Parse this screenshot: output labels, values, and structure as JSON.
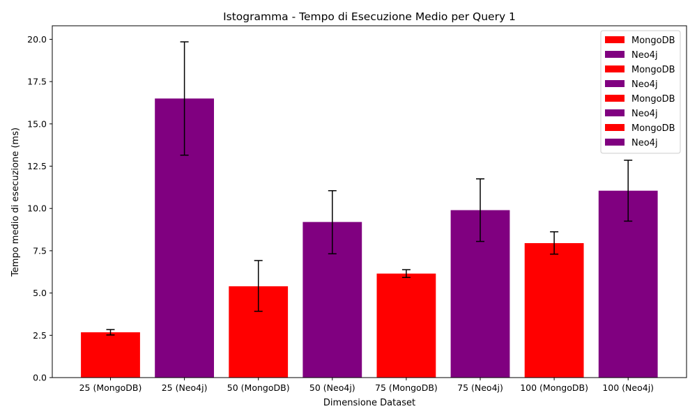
{
  "chart_data": {
    "type": "bar",
    "title": "Istogramma - Tempo di Esecuzione Medio per Query 1",
    "xlabel": "Dimensione Dataset",
    "ylabel": "Tempo medio di esecuzione (ms)",
    "ylim": [
      0,
      20.8
    ],
    "yticks": [
      "0.0",
      "2.5",
      "5.0",
      "7.5",
      "10.0",
      "12.5",
      "15.0",
      "17.5",
      "20.0"
    ],
    "ytick_values": [
      0,
      2.5,
      5,
      7.5,
      10,
      12.5,
      15,
      17.5,
      20
    ],
    "grid": false,
    "legend_placement": "top-right",
    "colors": {
      "MongoDB": "#ff0000",
      "Neo4j": "#800080"
    },
    "bars": [
      {
        "category": "25 (MongoDB)",
        "series": "MongoDB",
        "value": 2.68,
        "err_low": 2.52,
        "err_high": 2.84
      },
      {
        "category": "25 (Neo4j)",
        "series": "Neo4j",
        "value": 16.5,
        "err_low": 13.15,
        "err_high": 19.85
      },
      {
        "category": "50 (MongoDB)",
        "series": "MongoDB",
        "value": 5.4,
        "err_low": 3.92,
        "err_high": 6.92
      },
      {
        "category": "50 (Neo4j)",
        "series": "Neo4j",
        "value": 9.2,
        "err_low": 7.32,
        "err_high": 11.05
      },
      {
        "category": "75 (MongoDB)",
        "series": "MongoDB",
        "value": 6.15,
        "err_low": 5.92,
        "err_high": 6.38
      },
      {
        "category": "75 (Neo4j)",
        "series": "Neo4j",
        "value": 9.9,
        "err_low": 8.05,
        "err_high": 11.75
      },
      {
        "category": "100 (MongoDB)",
        "series": "MongoDB",
        "value": 7.95,
        "err_low": 7.3,
        "err_high": 8.62
      },
      {
        "category": "100 (Neo4j)",
        "series": "Neo4j",
        "value": 11.05,
        "err_low": 9.25,
        "err_high": 12.85
      }
    ],
    "legend": [
      "MongoDB",
      "Neo4j",
      "MongoDB",
      "Neo4j",
      "MongoDB",
      "Neo4j",
      "MongoDB",
      "Neo4j"
    ]
  }
}
